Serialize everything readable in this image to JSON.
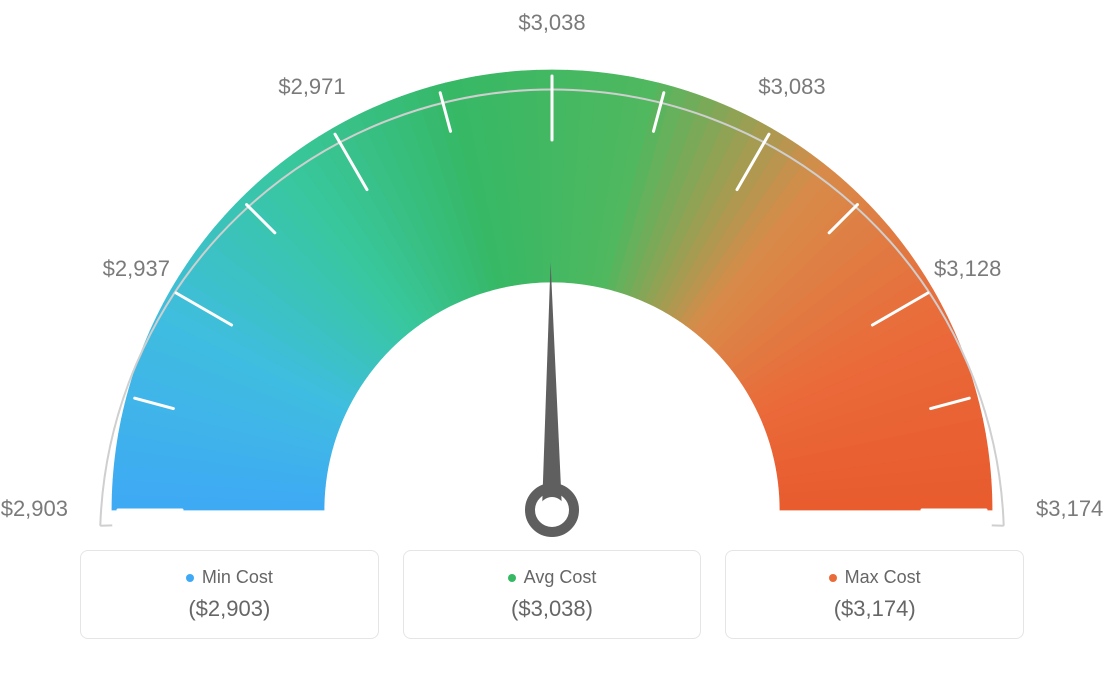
{
  "gauge": {
    "type": "gauge",
    "min_value": 2903,
    "max_value": 3174,
    "avg_value": 3038,
    "needle_value": 3038,
    "tick_labels": [
      "$2,903",
      "$2,937",
      "$2,971",
      "$3,038",
      "$3,083",
      "$3,128",
      "$3,174"
    ],
    "tick_label_positions_deg": [
      180,
      150,
      120,
      90,
      60,
      30,
      0
    ],
    "label_fontsize": 22,
    "label_color": "#7a7a7a",
    "gradient_colors": [
      "#3fa9f5",
      "#3fbde0",
      "#38c7a0",
      "#37b865",
      "#4fb85f",
      "#d88b4a",
      "#ea6a3a",
      "#e85b2e"
    ],
    "arc_outer_radius": 440,
    "arc_inner_radius": 228,
    "outline_radius": 452,
    "outline_color": "#cfcfcf",
    "outline_width": 2,
    "tick_color": "#ffffff",
    "tick_width": 3,
    "needle_color": "#5f5f5f",
    "background_color": "#ffffff",
    "start_angle_deg": 180,
    "end_angle_deg": 0
  },
  "legend": {
    "min": {
      "label": "Min Cost",
      "value": "($2,903)",
      "dot_color": "#3fa9f5"
    },
    "avg": {
      "label": "Avg Cost",
      "value": "($3,038)",
      "dot_color": "#37b865"
    },
    "max": {
      "label": "Max Cost",
      "value": "($3,174)",
      "dot_color": "#ea6a3a"
    },
    "border_color": "#e5e5e5",
    "label_color": "#7a7a7a",
    "value_color": "#7a7a7a",
    "label_fontsize": 18,
    "value_fontsize": 22
  }
}
